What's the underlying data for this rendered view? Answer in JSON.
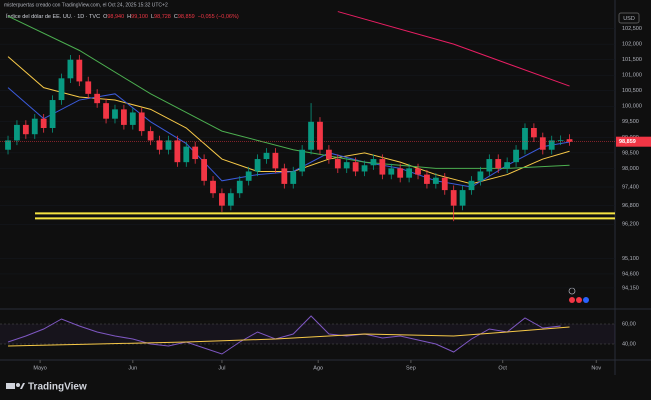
{
  "chart_data": {
    "type": "candlestick",
    "credit": "misterpuertas creado con TradingView.com, el Oct 24, 2025 15:32 UTC+2",
    "title": "Índice del dólar de EE. UU. · 1D · TVC",
    "legend_values": [
      {
        "prefix": "O",
        "value": 98.94,
        "label": "98,940"
      },
      {
        "prefix": "H",
        "value": 99.1,
        "label": "99,100"
      },
      {
        "prefix": "L",
        "value": 98.728,
        "label": "98,728"
      },
      {
        "prefix": "C",
        "value": 98.859,
        "label": "98,859"
      },
      {
        "value": -0.055,
        "label": "−0,055 (−0,06%)"
      }
    ],
    "currency": "USD",
    "brand": "TradingView",
    "xlim": [
      -0.9,
      68.1
    ],
    "xticks": [
      {
        "value": 3.6,
        "label": "Mayo"
      },
      {
        "value": 14,
        "label": "Jun"
      },
      {
        "value": 24,
        "label": "Jul"
      },
      {
        "value": 34.8,
        "label": "Ago"
      },
      {
        "value": 45.2,
        "label": "Sep"
      },
      {
        "value": 55.5,
        "label": "Oct"
      },
      {
        "value": 66,
        "label": "Nov"
      }
    ],
    "ylim": [
      93.6,
      103.1
    ],
    "yticks": [
      {
        "value": 102.5,
        "label": "102,500"
      },
      {
        "value": 102,
        "label": "102,000"
      },
      {
        "value": 101.5,
        "label": "101,500"
      },
      {
        "value": 101,
        "label": "101,000"
      },
      {
        "value": 100.5,
        "label": "100,500"
      },
      {
        "value": 100,
        "label": "100,000"
      },
      {
        "value": 99.5,
        "label": "99,500"
      },
      {
        "value": 99,
        "label": "99,000"
      },
      {
        "value": 98.5,
        "label": "98,500"
      },
      {
        "value": 98,
        "label": "98,000"
      },
      {
        "value": 97.4,
        "label": "97,400"
      },
      {
        "value": 96.8,
        "label": "96,800"
      },
      {
        "value": 96.2,
        "label": "96,200"
      },
      {
        "value": 95.1,
        "label": "95,100"
      },
      {
        "value": 94.6,
        "label": "94,600"
      },
      {
        "value": 94.15,
        "label": "94,150"
      }
    ],
    "up_color": "#089981",
    "down_color": "#f23645",
    "open": [
      98.6,
      98.9,
      99.4,
      99.1,
      99.6,
      99.3,
      100.2,
      100.9,
      101.5,
      100.8,
      100.4,
      100.1,
      99.6,
      99.9,
      99.4,
      99.8,
      99.2,
      98.9,
      98.6,
      98.9,
      98.2,
      98.7,
      98.3,
      97.6,
      97.2,
      96.8,
      97.2,
      97.6,
      97.9,
      98.3,
      98.5,
      98.0,
      97.5,
      97.9,
      98.6,
      99.5,
      98.6,
      98.3,
      98.0,
      98.2,
      97.9,
      98.1,
      98.3,
      97.8,
      98.0,
      97.7,
      98.0,
      97.8,
      97.5,
      97.7,
      97.3,
      96.8,
      97.3,
      97.6,
      97.9,
      98.3,
      98.0,
      98.2,
      98.6,
      99.3,
      99.0,
      98.6,
      98.9,
      98.94
    ],
    "high": [
      99.05,
      99.55,
      99.55,
      99.75,
      99.75,
      100.35,
      101.05,
      101.65,
      101.65,
      100.95,
      100.55,
      100.25,
      100.05,
      100.05,
      99.95,
      99.95,
      99.35,
      99.05,
      99.05,
      99.05,
      98.85,
      98.85,
      98.45,
      97.75,
      97.35,
      97.35,
      97.75,
      98.05,
      98.45,
      98.65,
      98.65,
      98.15,
      98.05,
      98.75,
      100.1,
      99.65,
      98.75,
      98.45,
      98.35,
      98.35,
      98.25,
      98.45,
      98.45,
      98.15,
      98.15,
      98.15,
      98.15,
      97.95,
      97.85,
      97.85,
      97.45,
      97.45,
      97.75,
      98.05,
      98.45,
      98.45,
      98.35,
      98.75,
      99.45,
      99.45,
      99.15,
      99.05,
      99.06,
      99.1
    ],
    "low": [
      98.45,
      98.75,
      98.95,
      98.95,
      99.15,
      99.15,
      100.05,
      100.75,
      100.65,
      100.25,
      99.95,
      99.45,
      99.45,
      99.25,
      99.25,
      99.05,
      98.75,
      98.45,
      98.45,
      98.05,
      98.05,
      98.15,
      97.45,
      97.05,
      96.6,
      96.65,
      97.05,
      97.45,
      97.75,
      98.15,
      97.85,
      97.35,
      97.35,
      97.75,
      98.45,
      98.45,
      98.15,
      97.85,
      97.85,
      97.75,
      97.75,
      97.95,
      97.65,
      97.65,
      97.55,
      97.55,
      97.65,
      97.35,
      97.35,
      97.15,
      96.3,
      96.65,
      97.15,
      97.45,
      97.75,
      97.85,
      97.85,
      98.05,
      98.45,
      98.85,
      98.45,
      98.45,
      98.75,
      98.728
    ],
    "close": [
      98.9,
      99.4,
      99.1,
      99.6,
      99.3,
      100.2,
      100.9,
      101.5,
      100.8,
      100.4,
      100.1,
      99.6,
      99.9,
      99.4,
      99.8,
      99.2,
      98.9,
      98.6,
      98.9,
      98.2,
      98.7,
      98.3,
      97.6,
      97.2,
      96.8,
      97.2,
      97.6,
      97.9,
      98.3,
      98.5,
      98.0,
      97.5,
      97.9,
      98.6,
      99.5,
      98.6,
      98.3,
      98.0,
      98.2,
      97.9,
      98.1,
      98.3,
      97.8,
      98.0,
      97.7,
      98.0,
      97.8,
      97.5,
      97.7,
      97.3,
      96.8,
      97.3,
      97.6,
      97.9,
      98.3,
      98.0,
      98.2,
      98.6,
      99.3,
      99.0,
      98.6,
      98.9,
      98.914,
      98.859
    ],
    "series": [
      {
        "color": "#f7c948",
        "x": [
          0,
          4,
          8,
          12,
          16,
          20,
          24,
          28,
          32,
          36,
          40,
          44,
          48,
          52,
          56,
          60,
          63
        ],
        "values": [
          101.6,
          100.6,
          100.3,
          100.2,
          99.9,
          99.3,
          98.3,
          97.9,
          97.9,
          98.3,
          98.5,
          98.2,
          97.8,
          97.5,
          97.8,
          98.3,
          98.55
        ]
      },
      {
        "color": "#3b5bdb",
        "x": [
          0,
          4,
          8,
          12,
          16,
          20,
          24,
          28,
          32,
          36,
          40,
          44,
          48,
          52,
          56,
          60,
          63
        ],
        "values": [
          100.6,
          99.6,
          100.2,
          100.4,
          99.5,
          98.8,
          97.6,
          97.8,
          97.9,
          98.5,
          98.2,
          98.0,
          97.6,
          97.4,
          98.1,
          98.7,
          98.85
        ]
      },
      {
        "color": "#4caf50",
        "x": [
          0,
          8,
          16,
          24,
          32,
          40,
          48,
          56,
          63
        ],
        "values": [
          102.9,
          101.8,
          100.4,
          99.2,
          98.6,
          98.2,
          98.0,
          98.0,
          98.1
        ]
      },
      {
        "color": "#e91e63",
        "x": [
          37,
          50,
          63
        ],
        "values": [
          103.05,
          102.0,
          100.65
        ]
      }
    ],
    "levels": [
      96.55,
      96.39
    ],
    "level_color": "#f5e342",
    "last_price": {
      "value": 98.859,
      "label": "98,859"
    },
    "rsi": {
      "ylim": [
        27,
        71
      ],
      "yticks": [
        {
          "value": 60,
          "label": "60,00"
        },
        {
          "value": 40,
          "label": "40,00"
        }
      ],
      "x": [
        0,
        2,
        4,
        6,
        8,
        10,
        12,
        14,
        16,
        18,
        20,
        22,
        24,
        26,
        28,
        30,
        32,
        34,
        36,
        38,
        40,
        42,
        44,
        46,
        48,
        50,
        52,
        54,
        56,
        58,
        60,
        62
      ],
      "values": [
        42,
        48,
        55,
        65,
        58,
        52,
        48,
        45,
        40,
        38,
        42,
        36,
        30,
        42,
        52,
        45,
        50,
        68,
        50,
        48,
        50,
        46,
        48,
        44,
        40,
        32,
        45,
        55,
        52,
        66,
        56,
        58
      ],
      "color": "#7e57c2",
      "ma_x": [
        0,
        10,
        20,
        30,
        40,
        50,
        56,
        63
      ],
      "ma_values": [
        38,
        40,
        42,
        45,
        50,
        48,
        52,
        57
      ],
      "ma_color": "#f7c948"
    }
  }
}
